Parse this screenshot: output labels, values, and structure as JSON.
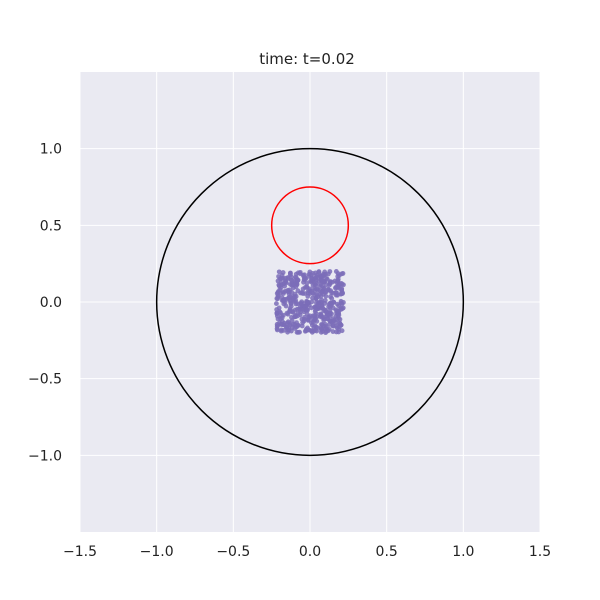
{
  "chart_data": {
    "type": "scatter",
    "title": "time: t=0.02",
    "xlabel": "",
    "ylabel": "",
    "xlim": [
      -1.5,
      1.5
    ],
    "ylim": [
      -1.5,
      1.5
    ],
    "xticks": [
      -1.5,
      -1.0,
      -0.5,
      0.0,
      0.5,
      1.0,
      1.5
    ],
    "xtick_labels": [
      "−1.5",
      "−1.0",
      "−0.5",
      "0.0",
      "0.5",
      "1.0",
      "1.5"
    ],
    "yticks": [
      -1.0,
      -0.5,
      0.0,
      0.5,
      1.0
    ],
    "ytick_labels": [
      "−1.0",
      "−0.5",
      "0.0",
      "0.5",
      "1.0"
    ],
    "grid": true,
    "background_color": "#eaeaf2",
    "circles": [
      {
        "center": [
          0.0,
          0.0
        ],
        "radius": 1.0,
        "color": "#000000"
      },
      {
        "center": [
          0.0,
          0.5
        ],
        "radius": 0.25,
        "color": "#ff0000"
      }
    ],
    "particles": {
      "color": "#7b6db8",
      "x_range": [
        -0.22,
        0.22
      ],
      "y_range": [
        -0.2,
        0.2
      ],
      "approx_count": 500
    }
  }
}
